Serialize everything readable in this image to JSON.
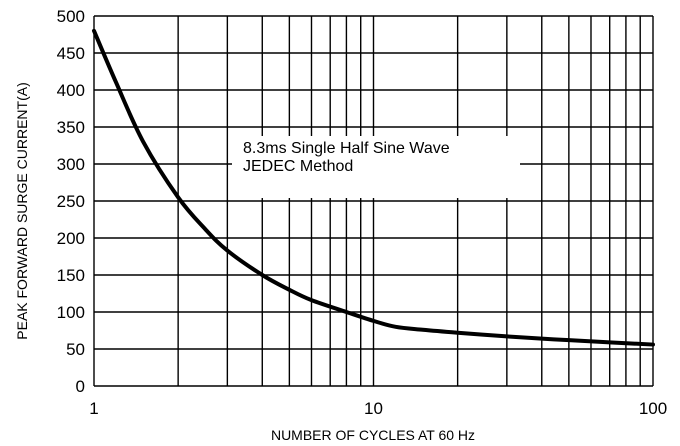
{
  "chart_data": {
    "type": "line",
    "xlabel": "NUMBER OF CYCLES AT 60 Hz",
    "ylabel": "PEAK FORWARD SURGE CURRENT(A)",
    "xscale": "log",
    "xlim": [
      1,
      100
    ],
    "ylim": [
      0,
      500
    ],
    "grid": true,
    "x_tick_labels": [
      "1",
      "10",
      "100"
    ],
    "y_tick_labels": [
      "0",
      "50",
      "100",
      "150",
      "200",
      "250",
      "300",
      "350",
      "400",
      "450",
      "500"
    ],
    "annotations": [
      "8.3ms Single Half Sine Wave",
      "JEDEC Method"
    ],
    "line_color": "#000000",
    "series": [
      {
        "x": [
          1,
          1.2,
          1.5,
          2,
          2.5,
          3,
          4,
          5,
          6,
          8,
          10,
          12,
          15,
          20,
          30,
          40,
          50,
          70,
          100
        ],
        "y": [
          480,
          410,
          330,
          255,
          212,
          183,
          150,
          130,
          116,
          100,
          88,
          80,
          76,
          72,
          67,
          64,
          62,
          59,
          56
        ]
      }
    ]
  }
}
